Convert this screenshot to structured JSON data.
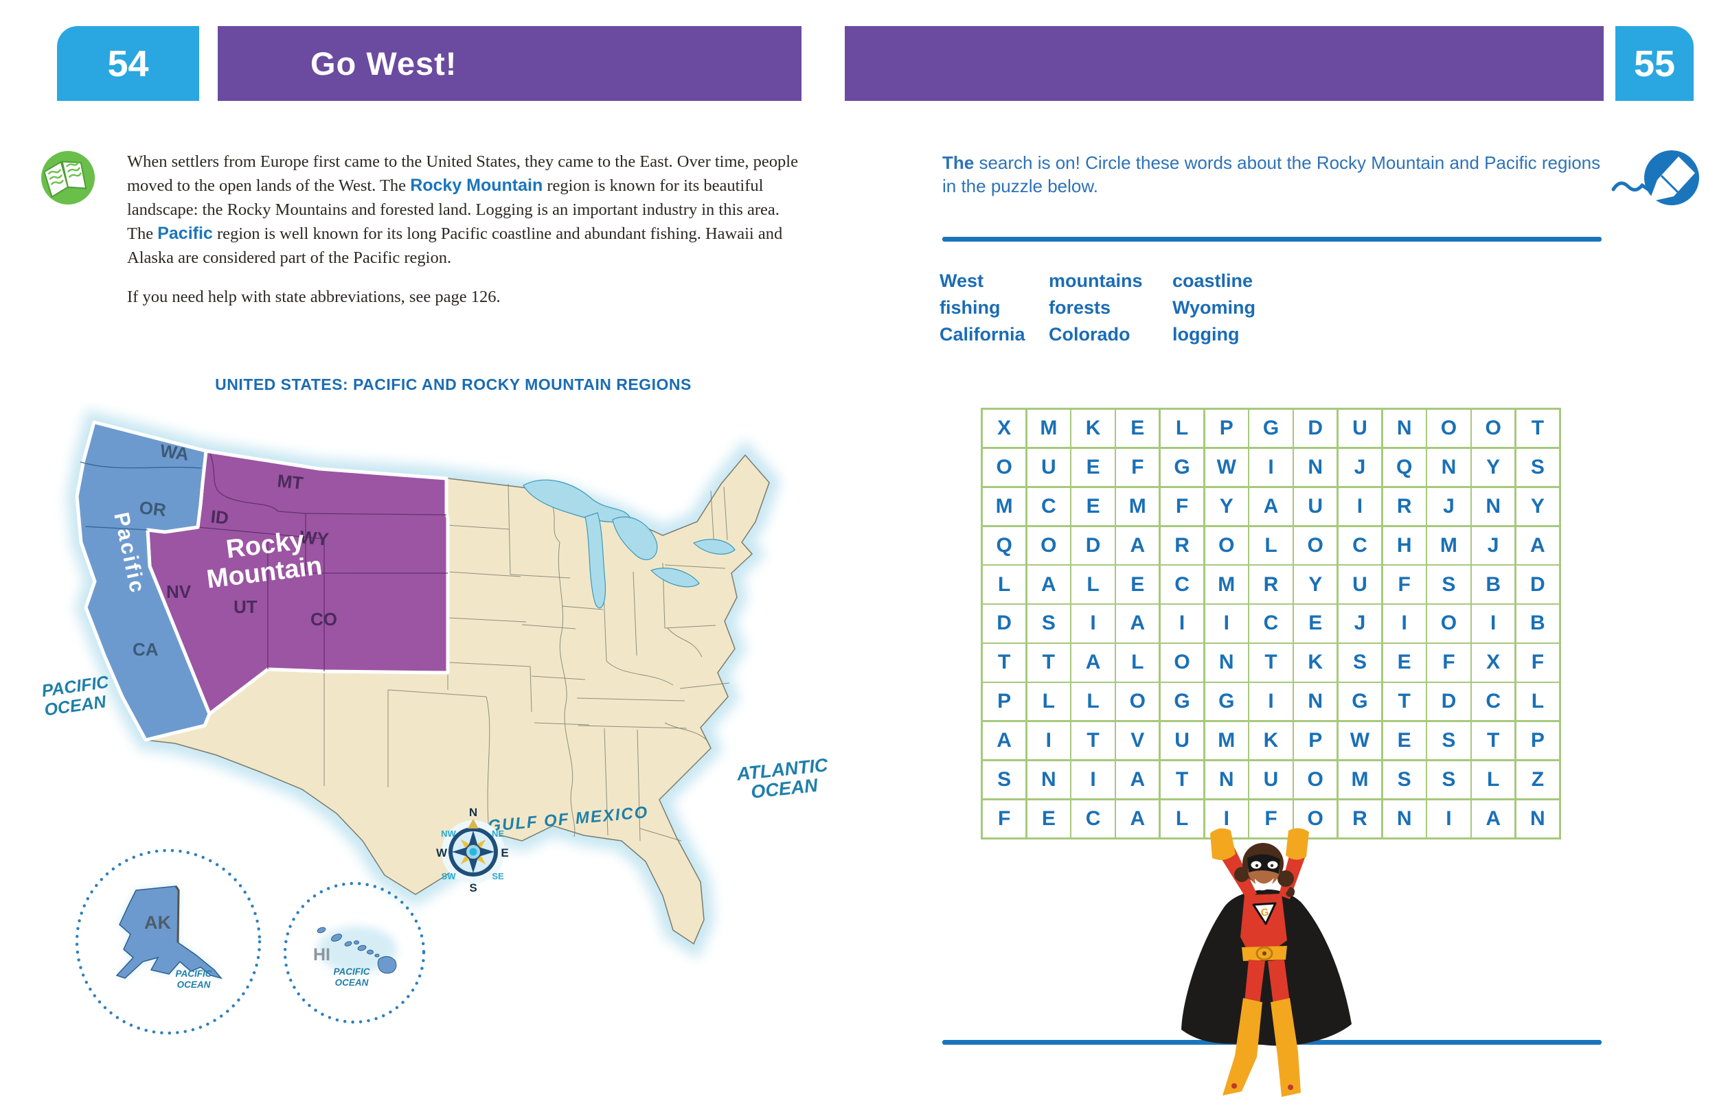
{
  "colors": {
    "tab_blue": "#2aa7e0",
    "banner_purple": "#6a4ba0",
    "highlight_blue": "#1b75bc",
    "intro_blue": "#2d72b9",
    "word_blue": "#1b6cb4",
    "grid_green": "#a6c97c",
    "rule_blue": "#1a74bc",
    "map_beige": "#f1e7c8",
    "pacific_blue": "#6d9ace",
    "rocky_purple": "#9c55a2",
    "ocean_teal": "#1f7fa9"
  },
  "left_page": {
    "page_number": "54",
    "title": "Go West!",
    "paragraph_segments": [
      {
        "style": "normal",
        "text": "When settlers from Europe first came to the United States, they came to the East. Over time, people moved to the open lands of the West. The "
      },
      {
        "style": "highlight",
        "text": "Rocky Mountain"
      },
      {
        "style": "normal",
        "text": " region is known for its beautiful landscape: the Rocky Mountains and forested land. Logging is an important industry in this area. The "
      },
      {
        "style": "highlight",
        "text": "Pacific"
      },
      {
        "style": "normal",
        "text": " region is well known for its long Pacific coastline and abundant fishing. Hawaii and Alaska are considered part of the Pacific region."
      }
    ],
    "hint": "If you need help with state abbreviations, see page 126.",
    "map": {
      "title": "UNITED STATES: PACIFIC AND ROCKY MOUNTAIN REGIONS",
      "region_labels": {
        "pacific": "Pacific",
        "rocky_line1": "Rocky",
        "rocky_line2": "Mountain"
      },
      "states": {
        "wa": "WA",
        "or": "OR",
        "ca": "CA",
        "mt": "MT",
        "id": "ID",
        "wy": "WY",
        "nv": "NV",
        "ut": "UT",
        "co": "CO",
        "ak": "AK",
        "hi": "HI"
      },
      "oceans": {
        "pacific_line1": "PACIFIC",
        "pacific_line2": "OCEAN",
        "atlantic_line1": "ATLANTIC",
        "atlantic_line2": "OCEAN",
        "gulf": "GULF OF MEXICO",
        "ak_inset_line1": "PACIFIC",
        "ak_inset_line2": "OCEAN",
        "hi_inset_line1": "PACIFIC",
        "hi_inset_line2": "OCEAN"
      },
      "compass": {
        "n": "N",
        "ne": "NE",
        "e": "E",
        "se": "SE",
        "s": "S",
        "sw": "SW",
        "w": "W",
        "nw": "NW"
      }
    }
  },
  "right_page": {
    "page_number": "55",
    "intro": {
      "bold": "The",
      "rest": " search is on! Circle these words about the Rocky Mountain and Pacific regions in the puzzle below."
    },
    "word_columns": [
      [
        "West",
        "fishing",
        "California"
      ],
      [
        "mountains",
        "forests",
        "Colorado"
      ],
      [
        "coastline",
        "Wyoming",
        "logging"
      ]
    ],
    "wordsearch_rows": [
      "XMKELPGDUNOOT",
      "OUEFGWINJQNYS",
      "MCEMFYAUIRJNY",
      "QODAROLOCHMJA",
      "LALECMRYUFSBD",
      "DSIAIICEJIOIB",
      "TTALONTKSEFXF",
      "PLLOGGINGTDCL",
      "AITVUMKPWESTP",
      "SNIATNUOMSSLZ",
      "FECALIFORNIAN"
    ]
  }
}
